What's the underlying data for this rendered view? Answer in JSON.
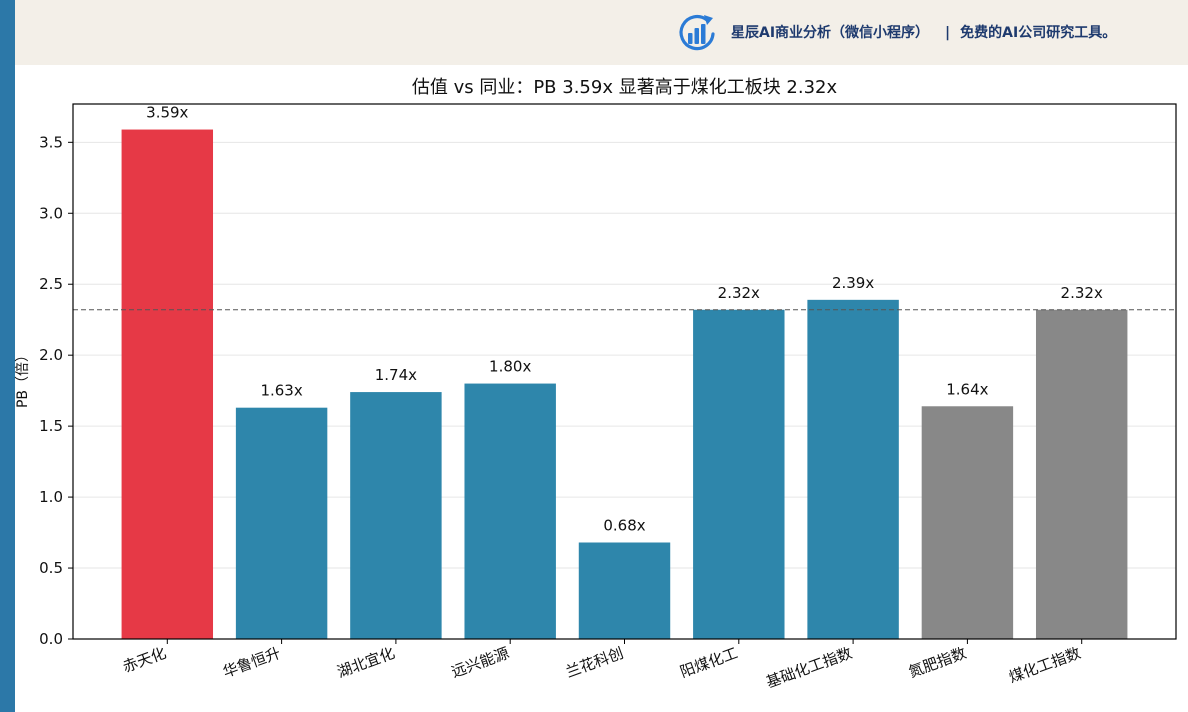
{
  "theme": {
    "left_strip": "#2c78a8",
    "banner_bg": "#f3efe8",
    "banner_text": "#1e3a6e",
    "logo": "#2b7bd6",
    "highlight": "#e63946",
    "peer": "#2e86ab",
    "benchmark": "#888888",
    "reference_line": "#555555",
    "grid": "#e6e6e6"
  },
  "banner": {
    "logo_icon": "bar-chart-refresh-icon",
    "title": "星辰AI商业分析（微信小程序）",
    "separator": "|",
    "tagline": "免费的AI公司研究工具。"
  },
  "chart_data": {
    "type": "bar",
    "title": "估值 vs 同业：PB 3.59x 显著高于煤化工板块 2.32x",
    "xlabel": "",
    "ylabel": "PB（倍）",
    "ylim": [
      0,
      3.77
    ],
    "yticks": [
      "0.0",
      "0.5",
      "1.0",
      "1.5",
      "2.0",
      "2.5",
      "3.0",
      "3.5"
    ],
    "categories": [
      "赤天化",
      "华鲁恒升",
      "湖北宜化",
      "远兴能源",
      "兰花科创",
      "阳煤化工",
      "基础化工指数",
      "氮肥指数",
      "煤化工指数"
    ],
    "values": [
      3.59,
      1.63,
      1.74,
      1.8,
      0.68,
      2.32,
      2.39,
      1.64,
      2.32
    ],
    "labels": [
      "3.59x",
      "1.63x",
      "1.74x",
      "1.80x",
      "0.68x",
      "2.32x",
      "2.39x",
      "1.64x",
      "2.32x"
    ],
    "bar_groups": [
      "highlight",
      "peer",
      "peer",
      "peer",
      "peer",
      "peer",
      "peer",
      "benchmark",
      "benchmark"
    ],
    "reference_line": 2.32,
    "grid": true,
    "legend": "none"
  }
}
